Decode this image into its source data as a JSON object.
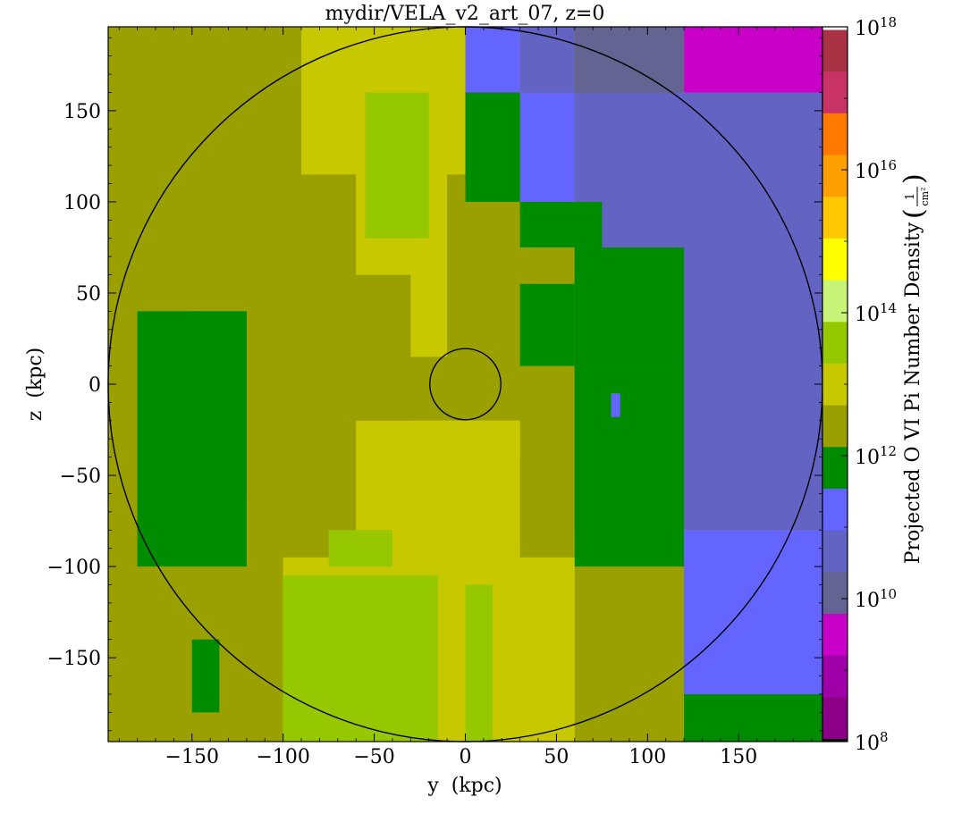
{
  "chart_data": {
    "type": "heatmap",
    "title": "mydir/VELA_v2_art_07, z=0",
    "xlabel": "y  (kpc)",
    "ylabel": "z  (kpc)",
    "xlim": [
      -196,
      196
    ],
    "ylim": [
      -196,
      196
    ],
    "x_ticks": [
      -150,
      -100,
      -50,
      0,
      50,
      100,
      150
    ],
    "y_ticks": [
      -150,
      -100,
      -50,
      0,
      50,
      100,
      150
    ],
    "x_tick_labels": [
      "−150",
      "−100",
      "−50",
      "0",
      "50",
      "100",
      "150"
    ],
    "y_tick_labels": [
      "−150",
      "−100",
      "−50",
      "0",
      "50",
      "100",
      "150"
    ],
    "colorbar": {
      "label": "Projected O VI Pi Number Density",
      "unit_numerator": "1",
      "unit_denominator": "cm²",
      "log_range": [
        8,
        18
      ],
      "tick_exponents": [
        8,
        10,
        12,
        14,
        16,
        18
      ],
      "tick_base": "10",
      "band_colors": [
        "#000000",
        "#8b0086",
        "#a000a8",
        "#c800c8",
        "#636491",
        "#6363c4",
        "#6464ff",
        "#008c00",
        "#9aa000",
        "#c8c800",
        "#96c800",
        "#c8f578",
        "#ffff00",
        "#ffc800",
        "#ffa000",
        "#ff7800",
        "#c83264",
        "#a83244",
        "#ffffff"
      ]
    },
    "circles_kpc": [
      {
        "cx": 0,
        "cy": 0,
        "r": 196
      },
      {
        "cx": 0,
        "cy": 0,
        "r": 19.5
      }
    ],
    "regions": [
      {
        "x0": -196,
        "x1": 196,
        "y0": -196,
        "y1": 196,
        "color": "#9aa000"
      },
      {
        "x0": -90,
        "x1": 0,
        "y0": 115,
        "y1": 196,
        "color": "#c8c800"
      },
      {
        "x0": -60,
        "x1": -10,
        "y0": 60,
        "y1": 160,
        "color": "#c8c800"
      },
      {
        "x0": -55,
        "x1": -20,
        "y0": 80,
        "y1": 160,
        "color": "#96c800"
      },
      {
        "x0": -30,
        "x1": -10,
        "y0": 15,
        "y1": 80,
        "color": "#c8c800"
      },
      {
        "x0": -30,
        "x1": 30,
        "y0": -40,
        "y1": -20,
        "color": "#c8c800"
      },
      {
        "x0": -60,
        "x1": 30,
        "y0": -95,
        "y1": -20,
        "color": "#c8c800"
      },
      {
        "x0": -100,
        "x1": 60,
        "y0": -196,
        "y1": -95,
        "color": "#c8c800"
      },
      {
        "x0": -100,
        "x1": -15,
        "y0": -196,
        "y1": -105,
        "color": "#96c800"
      },
      {
        "x0": 0,
        "x1": 15,
        "y0": -196,
        "y1": -110,
        "color": "#96c800"
      },
      {
        "x0": -75,
        "x1": -40,
        "y0": -100,
        "y1": -80,
        "color": "#96c800"
      },
      {
        "x0": 0,
        "x1": 30,
        "y0": 160,
        "y1": 196,
        "color": "#6464ff"
      },
      {
        "x0": 30,
        "x1": 60,
        "y0": 160,
        "y1": 196,
        "color": "#6363c4"
      },
      {
        "x0": 60,
        "x1": 120,
        "y0": 160,
        "y1": 196,
        "color": "#636491"
      },
      {
        "x0": 120,
        "x1": 196,
        "y0": 160,
        "y1": 196,
        "color": "#c800c8"
      },
      {
        "x0": 30,
        "x1": 60,
        "y0": 100,
        "y1": 160,
        "color": "#6464ff"
      },
      {
        "x0": 60,
        "x1": 196,
        "y0": -80,
        "y1": 160,
        "color": "#6363c4"
      },
      {
        "x0": 0,
        "x1": 30,
        "y0": 100,
        "y1": 160,
        "color": "#008c00"
      },
      {
        "x0": 30,
        "x1": 75,
        "y0": 75,
        "y1": 100,
        "color": "#008c00"
      },
      {
        "x0": 60,
        "x1": 120,
        "y0": 10,
        "y1": 75,
        "color": "#008c00"
      },
      {
        "x0": 30,
        "x1": 60,
        "y0": 10,
        "y1": 55,
        "color": "#008c00"
      },
      {
        "x0": 60,
        "x1": 120,
        "y0": -100,
        "y1": 10,
        "color": "#008c00"
      },
      {
        "x0": 120,
        "x1": 196,
        "y0": -196,
        "y1": -140,
        "color": "#008c00"
      },
      {
        "x0": -180,
        "x1": -120,
        "y0": -100,
        "y1": 40,
        "color": "#008c00"
      },
      {
        "x0": -150,
        "x1": -120,
        "y0": -60,
        "y1": 40,
        "color": "#008c00"
      },
      {
        "x0": -150,
        "x1": -135,
        "y0": -180,
        "y1": -140,
        "color": "#008c00"
      },
      {
        "x0": 120,
        "x1": 196,
        "y0": -170,
        "y1": -80,
        "color": "#6464ff"
      },
      {
        "x0": 80,
        "x1": 85,
        "y0": -18,
        "y1": -5,
        "color": "#6464ff"
      }
    ]
  }
}
